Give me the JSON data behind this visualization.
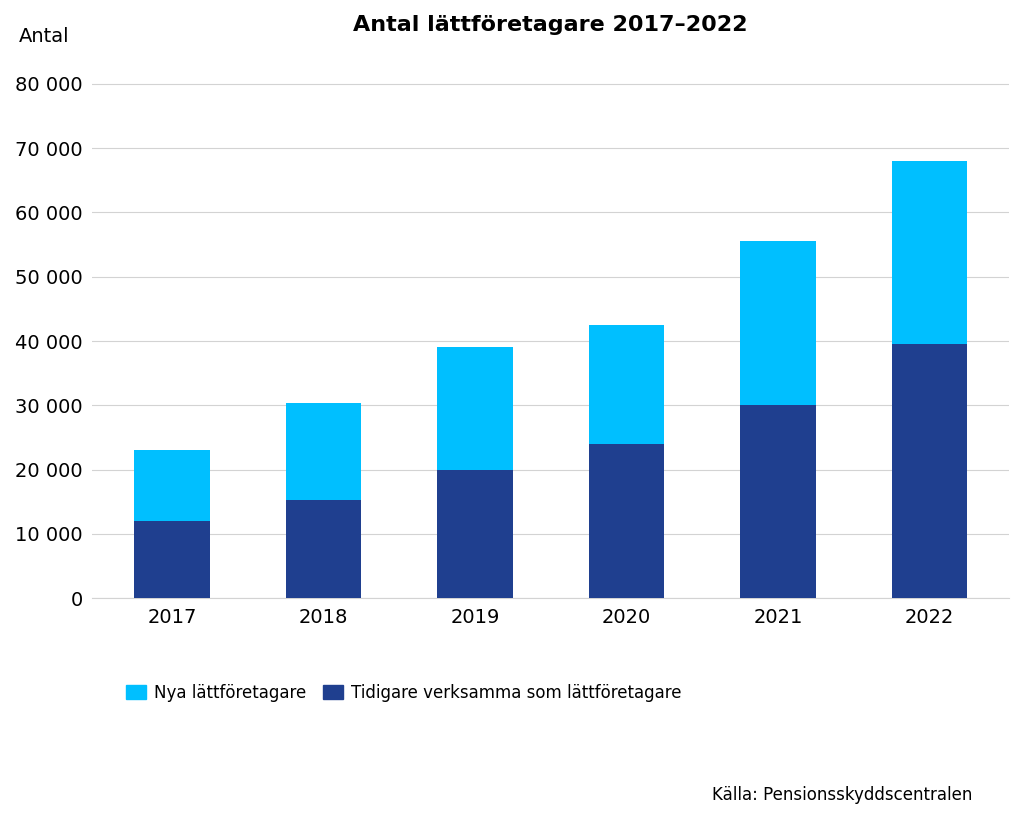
{
  "title": "Antal lättföretagare 2017–2022",
  "ylabel_text": "Antal",
  "years": [
    "2017",
    "2018",
    "2019",
    "2020",
    "2021",
    "2022"
  ],
  "nya": [
    10988,
    15000,
    19000,
    18500,
    25581,
    28414
  ],
  "tidigare": [
    12040,
    15300,
    20000,
    24000,
    30000,
    39581
  ],
  "color_nya": "#00BFFF",
  "color_tidigare": "#1F3F8F",
  "ylim": [
    0,
    85000
  ],
  "yticks": [
    0,
    10000,
    20000,
    30000,
    40000,
    50000,
    60000,
    70000,
    80000
  ],
  "legend_nya": "Nya lättföretagare",
  "legend_tidigare": "Tidigare verksamma som lättföretagare",
  "source": "Källa: Pensionsskyddscentralen",
  "background_color": "#ffffff",
  "title_fontsize": 16,
  "tick_fontsize": 14,
  "legend_fontsize": 12,
  "source_fontsize": 12
}
